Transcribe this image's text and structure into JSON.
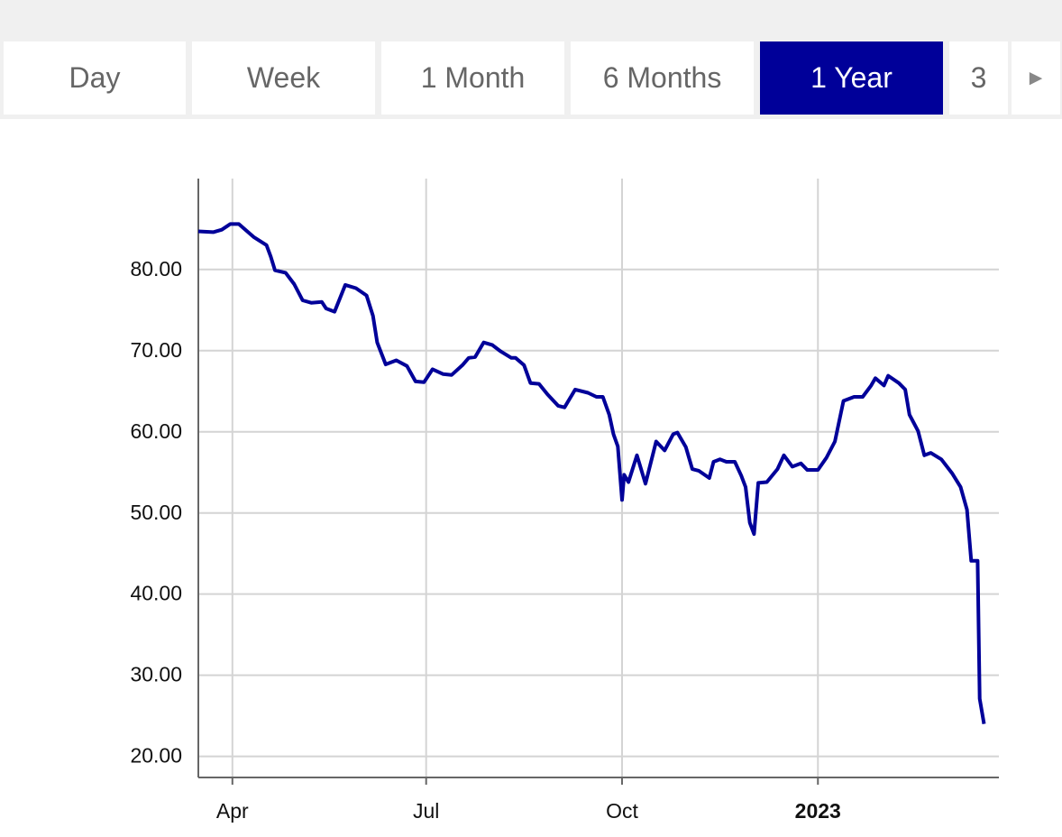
{
  "tabs": [
    "Day",
    "Week",
    "1 Month",
    "6 Months",
    "1 Year",
    "3"
  ],
  "selected_tab": 4,
  "chart_data": {
    "type": "line",
    "color": "#000099",
    "grid": true,
    "x": [
      -16,
      -9,
      -5,
      -1,
      3,
      10,
      16,
      18,
      20,
      25,
      29,
      33,
      37,
      42,
      44,
      48,
      53,
      58,
      63,
      66,
      68,
      72,
      77,
      82,
      86,
      90,
      94,
      99,
      103,
      108,
      111,
      114,
      118,
      122,
      126,
      131,
      133,
      137,
      140,
      144,
      148,
      153,
      156,
      161,
      167,
      171,
      174,
      177,
      179,
      181,
      183,
      184,
      186,
      190,
      194,
      199,
      203,
      207,
      209,
      213,
      216,
      219,
      224,
      226,
      229,
      232,
      236,
      239,
      241,
      243,
      245,
      247,
      251,
      256,
      259,
      263,
      267,
      270,
      275,
      279,
      283,
      287,
      292,
      296,
      300,
      302,
      306,
      308,
      313,
      316,
      318,
      322,
      325,
      328,
      333,
      338,
      342,
      345,
      347,
      350,
      351,
      353
    ],
    "values": [
      84.7,
      84.6,
      84.9,
      85.6,
      85.6,
      84.0,
      83.0,
      81.6,
      79.9,
      79.6,
      78.2,
      76.2,
      75.9,
      76.0,
      75.2,
      74.8,
      78.1,
      77.7,
      76.8,
      74.3,
      71.0,
      68.3,
      68.8,
      68.1,
      66.2,
      66.1,
      67.7,
      67.1,
      67.0,
      68.2,
      69.1,
      69.2,
      71.0,
      70.7,
      69.9,
      69.1,
      69.1,
      68.2,
      66.0,
      65.9,
      64.6,
      63.2,
      63.0,
      65.2,
      64.8,
      64.3,
      64.3,
      62.1,
      59.7,
      58.2,
      51.6,
      54.7,
      53.8,
      57.1,
      53.6,
      58.8,
      57.7,
      59.7,
      59.9,
      58.1,
      55.4,
      55.2,
      54.3,
      56.3,
      56.6,
      56.3,
      56.3,
      54.6,
      53.2,
      48.8,
      47.4,
      53.7,
      53.8,
      55.4,
      57.1,
      55.7,
      56.1,
      55.3,
      55.3,
      56.8,
      58.8,
      63.8,
      64.3,
      64.3,
      65.7,
      66.6,
      65.7,
      66.9,
      66.0,
      65.2,
      62.1,
      60.1,
      57.1,
      57.4,
      56.6,
      54.9,
      53.2,
      50.4,
      44.1,
      44.1,
      27.1,
      24.0
    ],
    "xlim": [
      -16,
      360
    ],
    "xticks": [
      {
        "value": 0,
        "label": "Apr"
      },
      {
        "value": 91,
        "label": "Jul"
      },
      {
        "value": 183,
        "label": "Oct"
      },
      {
        "value": 275,
        "label": "2023"
      }
    ],
    "ylim": [
      17.4,
      91.2
    ],
    "yticks": [
      {
        "value": 20,
        "label": "20.00"
      },
      {
        "value": 30,
        "label": "30.00"
      },
      {
        "value": 40,
        "label": "40.00"
      },
      {
        "value": 50,
        "label": "50.00"
      },
      {
        "value": 60,
        "label": "60.00"
      },
      {
        "value": 70,
        "label": "70.00"
      },
      {
        "value": 80,
        "label": "80.00"
      }
    ]
  }
}
